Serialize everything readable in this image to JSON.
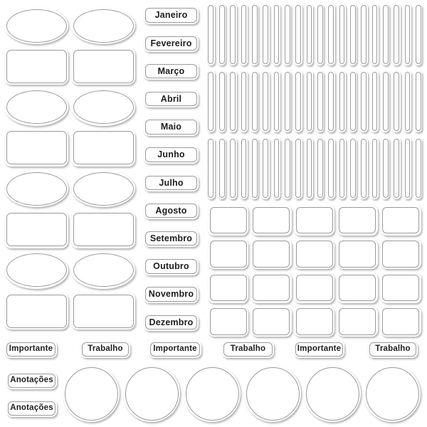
{
  "sheet": {
    "background": "#ffffff",
    "sticker_fill": "#ffffff",
    "sticker_outline": "#9a9a9a",
    "text_color": "#1d1d1d",
    "shadow_color": "rgba(0,0,0,0.30)"
  },
  "months": [
    "Janeiro",
    "Fevereiro",
    "Março",
    "Abril",
    "Maio",
    "Junho",
    "Julho",
    "Agosto",
    "Setembro",
    "Outubro",
    "Novembro",
    "Dezembro"
  ],
  "tags": [
    "Importante",
    "Trabalho",
    "Importante",
    "Trabalho",
    "Importante",
    "Trabalho"
  ],
  "notes": [
    "Anotações",
    "Anotações"
  ],
  "blank_stickers": {
    "left_panel": {
      "rows": 8,
      "columns": 2,
      "row_shapes": [
        "oval",
        "rectangle",
        "oval",
        "rectangle",
        "oval",
        "rectangle",
        "oval",
        "rectangle"
      ]
    },
    "strip_rows": {
      "rows": 3,
      "strips_per_row": 20,
      "shape": "vertical-pill"
    },
    "square_grid": {
      "rows": 4,
      "columns": 5,
      "shape": "rounded-square"
    },
    "circles": {
      "count": 6,
      "shape": "circle"
    }
  }
}
